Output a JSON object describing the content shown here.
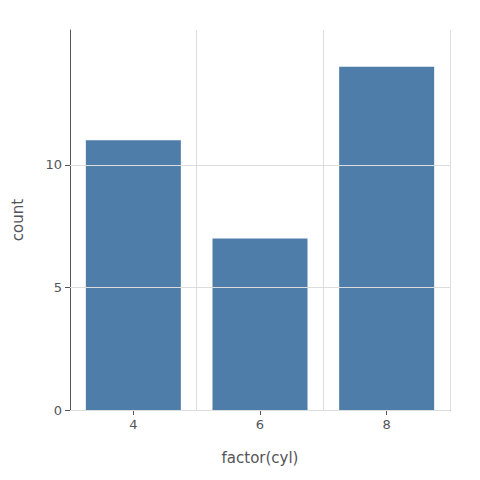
{
  "chart_data": {
    "type": "bar",
    "categories": [
      "4",
      "6",
      "8"
    ],
    "values": [
      11,
      7,
      14
    ],
    "color": "#4e7daa",
    "xlabel": "factor(cyl)",
    "ylabel": "count",
    "ylim": [
      0,
      15.5
    ],
    "yticks": [
      0,
      5,
      10
    ],
    "grid": true
  }
}
